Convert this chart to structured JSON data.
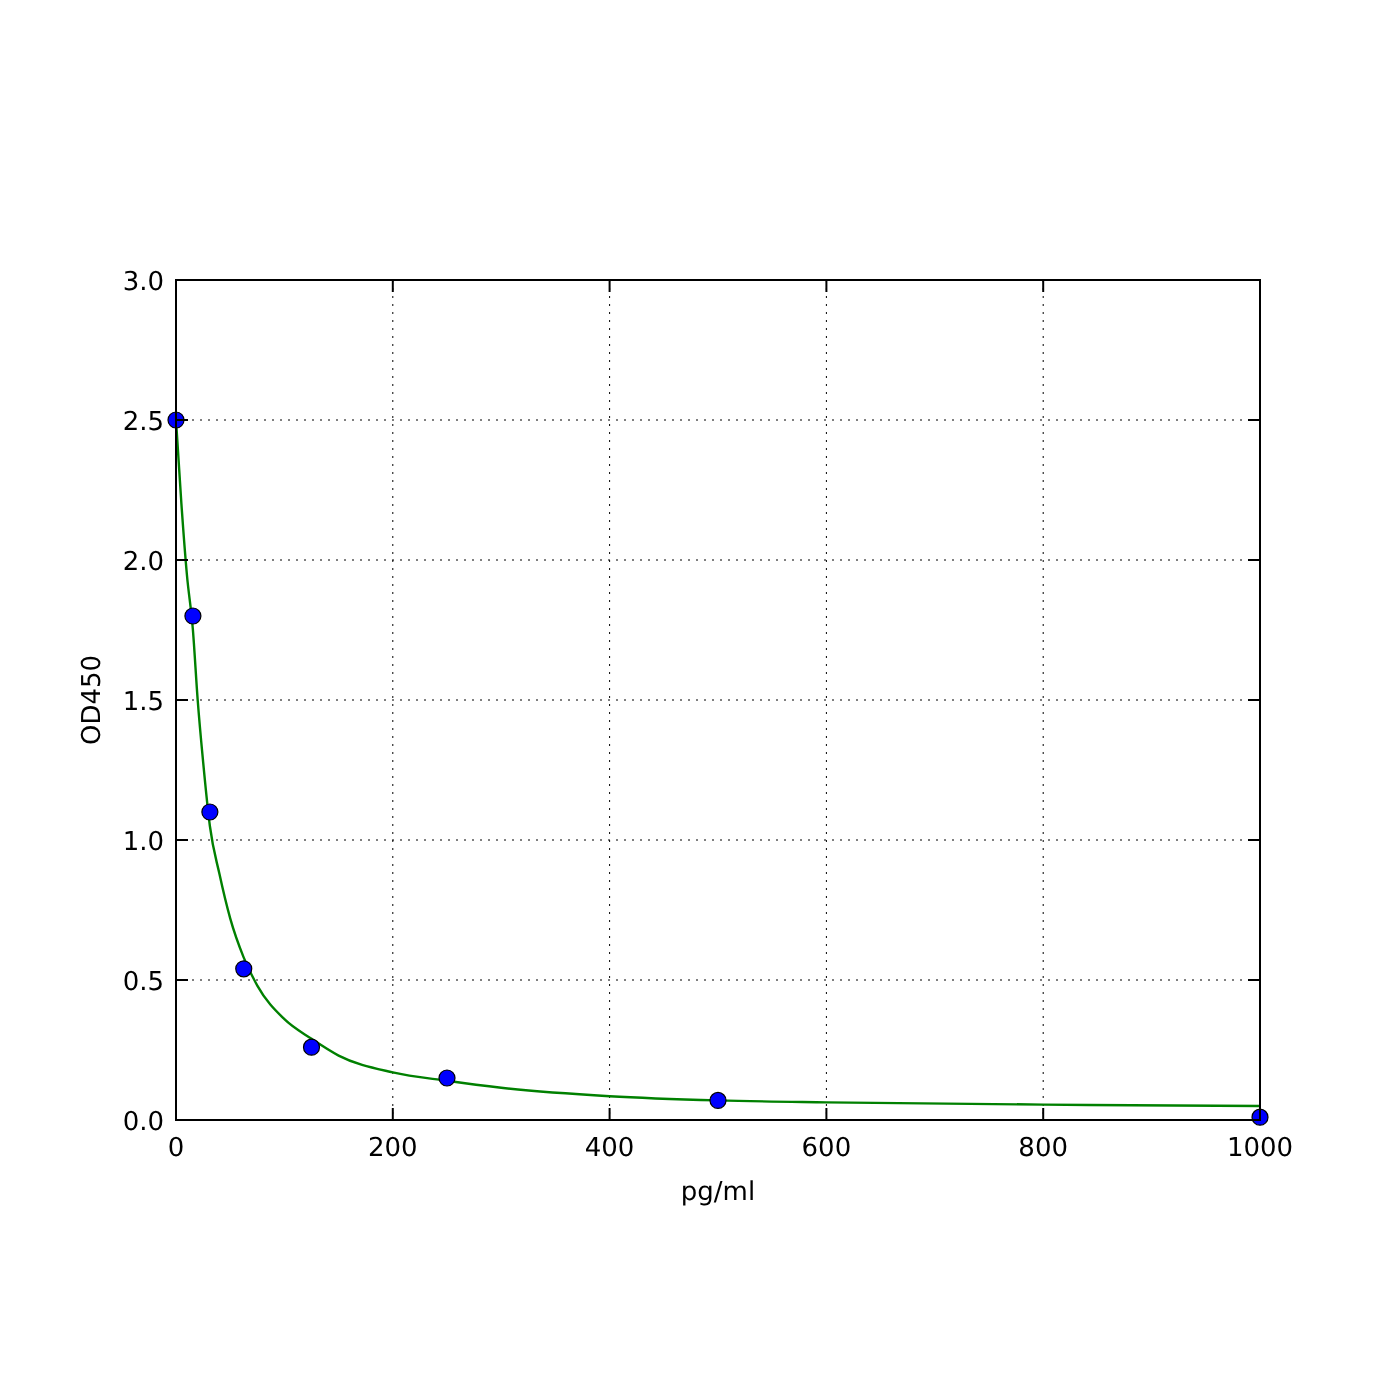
{
  "chart_data": {
    "type": "scatter",
    "xlabel": "pg/ml",
    "ylabel": "OD450",
    "xlim": [
      0,
      1000
    ],
    "ylim": [
      0,
      3
    ],
    "xticks": [
      0,
      200,
      400,
      600,
      800,
      1000
    ],
    "yticks": [
      {
        "value": 0,
        "label": "0.0"
      },
      {
        "value": 0.5,
        "label": "0.5"
      },
      {
        "value": 1,
        "label": "1.0"
      },
      {
        "value": 1.5,
        "label": "1.5"
      },
      {
        "value": 2,
        "label": "2.0"
      },
      {
        "value": 2.5,
        "label": "2.5"
      },
      {
        "value": 3,
        "label": "3.0"
      }
    ],
    "grid": true,
    "series": [
      {
        "type": "line",
        "color": "#008000",
        "marker": "none",
        "line_style": "solid",
        "x": [
          0,
          5,
          10,
          15.6,
          20,
          25,
          31.25,
          40,
          50,
          62.5,
          75,
          100,
          125,
          150,
          200,
          250,
          300,
          400,
          500,
          600,
          800,
          1000
        ],
        "values": [
          2.5,
          2.2,
          1.95,
          1.75,
          1.5,
          1.28,
          1.05,
          0.88,
          0.72,
          0.58,
          0.48,
          0.36,
          0.29,
          0.23,
          0.17,
          0.14,
          0.115,
          0.085,
          0.07,
          0.063,
          0.055,
          0.05
        ]
      },
      {
        "color": "#0000ff",
        "marker": "circle",
        "x": [
          0,
          15.6,
          31.25,
          62.5,
          125,
          250,
          500,
          1000
        ],
        "values": [
          2.5,
          1.8,
          1.1,
          0.54,
          0.26,
          0.15,
          0.07,
          0.01
        ]
      }
    ]
  }
}
